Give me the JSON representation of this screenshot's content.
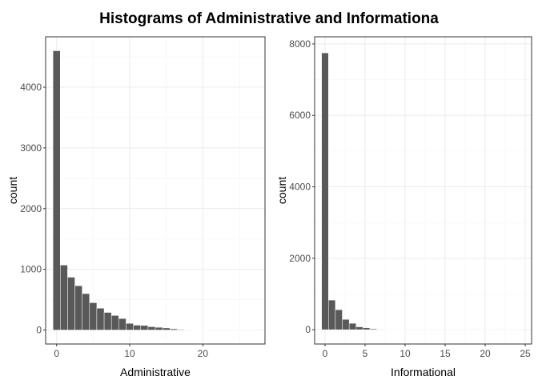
{
  "title": "Histograms of Administrative and Informationa",
  "colors": {
    "bar_fill": "#595959",
    "bar_outline": "#ffffff",
    "grid": "#ebebeb",
    "border": "#333333",
    "background": "#ffffff"
  },
  "chart_data": [
    {
      "type": "bar",
      "subtype": "histogram",
      "xlabel": "Administrative",
      "ylabel": "count",
      "xlim": [
        -1.5,
        28.5
      ],
      "ylim": [
        -230,
        4830
      ],
      "xticks": [
        0,
        10,
        20
      ],
      "yticks": [
        0,
        1000,
        2000,
        3000,
        4000
      ],
      "bin_width": 1,
      "grid": true,
      "x": [
        0,
        1,
        2,
        3,
        4,
        5,
        6,
        7,
        8,
        9,
        10,
        11,
        12,
        13,
        14,
        15,
        16,
        17,
        18,
        19,
        20,
        21,
        22,
        23,
        24,
        25,
        26,
        27
      ],
      "values": [
        4600,
        1070,
        870,
        730,
        600,
        450,
        360,
        290,
        240,
        190,
        110,
        80,
        75,
        55,
        45,
        35,
        20,
        10,
        6,
        4,
        3,
        2,
        2,
        1,
        1,
        1,
        1,
        1
      ]
    },
    {
      "type": "bar",
      "subtype": "histogram",
      "xlabel": "Informational",
      "ylabel": "count",
      "xlim": [
        -1.3,
        25.8
      ],
      "ylim": [
        -400,
        8200
      ],
      "xticks": [
        0,
        5,
        10,
        15,
        20,
        25
      ],
      "yticks": [
        0,
        2000,
        4000,
        6000,
        8000
      ],
      "bin_width": 0.862,
      "grid": true,
      "x": [
        0,
        0.862,
        1.724,
        2.586,
        3.448,
        4.31,
        5.172,
        6.034,
        6.897,
        7.759,
        8.621,
        9.483,
        10.345,
        11.207,
        12.069,
        12.931,
        13.793,
        14.655,
        15.517,
        16.379,
        17.241,
        18.103,
        18.966,
        19.828,
        20.69,
        21.552,
        22.414,
        23.276,
        24.138
      ],
      "values": [
        7750,
        830,
        560,
        290,
        180,
        80,
        55,
        25,
        12,
        6,
        4,
        3,
        2,
        2,
        1,
        1,
        1,
        1,
        1,
        1,
        1,
        1,
        1,
        1,
        1,
        1,
        1,
        1,
        1
      ]
    }
  ]
}
